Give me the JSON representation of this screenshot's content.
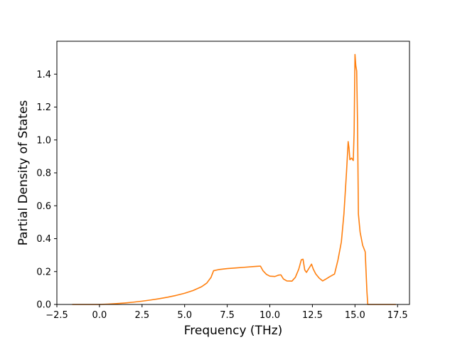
{
  "chart_data": {
    "type": "line",
    "xlabel": "Frequency (THz)",
    "ylabel": "Partial Density of States",
    "xlim": [
      -2.5,
      18.2
    ],
    "ylim": [
      0.0,
      1.6
    ],
    "xticks": [
      -2.5,
      0.0,
      2.5,
      5.0,
      7.5,
      10.0,
      12.5,
      15.0,
      17.5
    ],
    "xtick_labels": [
      "−2.5",
      "0.0",
      "2.5",
      "5.0",
      "7.5",
      "10.0",
      "12.5",
      "15.0",
      "17.5"
    ],
    "yticks": [
      0.0,
      0.2,
      0.4,
      0.6,
      0.8,
      1.0,
      1.2,
      1.4
    ],
    "ytick_labels": [
      "0.0",
      "0.2",
      "0.4",
      "0.6",
      "0.8",
      "1.0",
      "1.2",
      "1.4"
    ],
    "grid": false,
    "series": [
      {
        "color": "#ff7f0e",
        "x": [
          -1.6,
          0.0,
          0.5,
          1.0,
          1.5,
          2.0,
          2.5,
          3.0,
          3.5,
          4.0,
          4.5,
          5.0,
          5.5,
          6.0,
          6.3,
          6.55,
          6.7,
          7.0,
          7.5,
          8.0,
          8.5,
          9.0,
          9.3,
          9.45,
          9.6,
          9.8,
          10.0,
          10.3,
          10.5,
          10.65,
          10.8,
          11.0,
          11.3,
          11.5,
          11.7,
          11.85,
          11.95,
          12.05,
          12.15,
          12.3,
          12.45,
          12.55,
          12.7,
          12.9,
          13.1,
          13.3,
          13.5,
          13.8,
          14.0,
          14.2,
          14.35,
          14.5,
          14.6,
          14.65,
          14.7,
          14.8,
          14.9,
          14.95,
          15.0,
          15.05,
          15.1,
          15.15,
          15.2,
          15.3,
          15.45,
          15.6,
          15.7,
          15.75,
          15.8,
          16.0,
          17.4
        ],
        "y": [
          0.0,
          0.0,
          0.002,
          0.005,
          0.009,
          0.014,
          0.02,
          0.027,
          0.035,
          0.044,
          0.055,
          0.068,
          0.085,
          0.108,
          0.13,
          0.165,
          0.205,
          0.212,
          0.218,
          0.222,
          0.226,
          0.23,
          0.232,
          0.233,
          0.205,
          0.183,
          0.172,
          0.17,
          0.178,
          0.18,
          0.155,
          0.143,
          0.142,
          0.165,
          0.215,
          0.272,
          0.275,
          0.21,
          0.195,
          0.22,
          0.245,
          0.215,
          0.185,
          0.16,
          0.143,
          0.155,
          0.168,
          0.185,
          0.27,
          0.38,
          0.55,
          0.8,
          0.99,
          0.95,
          0.88,
          0.89,
          0.875,
          1.05,
          1.52,
          1.45,
          1.42,
          1.1,
          0.55,
          0.44,
          0.36,
          0.32,
          0.08,
          0.0,
          0.0,
          0.0,
          0.0
        ]
      }
    ]
  }
}
